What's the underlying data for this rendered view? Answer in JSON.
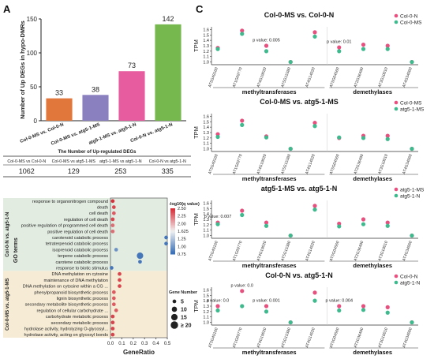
{
  "panel_labels": {
    "a": "A",
    "b": "B",
    "c": "C"
  },
  "chart_data": [
    {
      "id": "A",
      "type": "bar",
      "ylabel": "Number of Up DEGs in hypo-DMRs",
      "ylim": [
        0,
        150
      ],
      "yticks": [
        0,
        50,
        100,
        150
      ],
      "categories": [
        "Col-0-MS vs. Col-0-N",
        "Col-0-MS vs. atg5-1-MS",
        "atg5-1-MS vs. atg5-1-N",
        "Col-0-N vs. atg5-1-N"
      ],
      "values": [
        33,
        38,
        73,
        142
      ],
      "colors": [
        "#e2773b",
        "#8a80c0",
        "#e65c9f",
        "#76b84e"
      ],
      "table": {
        "title": "The Number of Up-regulated DEGs",
        "headers": [
          "Col-0-MS vs Col-0-N",
          "Col-0-MS vs atg5-1-MS",
          "atg5-1-MS vs atg5-1-N",
          "Col-0-N vs atg5-1-N"
        ],
        "values": [
          "1062",
          "129",
          "253",
          "335"
        ]
      }
    },
    {
      "id": "B",
      "type": "scatter",
      "xlabel": "GeneRatio",
      "xlim": [
        0,
        0.5
      ],
      "xticks": [
        "0.0",
        "0.1",
        "0.2",
        "0.3",
        "0.4",
        "0.5"
      ],
      "group_label": "GO terms",
      "groups": [
        {
          "name": "Col-0-N vs. atg5-1-N",
          "color": "#e2ece1",
          "terms": [
            {
              "term": "response to organonitrogen compound",
              "x": 0.02,
              "q": 2.6,
              "genes": 5
            },
            {
              "term": "death",
              "x": 0.03,
              "q": 2.5,
              "genes": 5
            },
            {
              "term": "cell death",
              "x": 0.03,
              "q": 2.4,
              "genes": 5
            },
            {
              "term": "regulation of cell death",
              "x": 0.02,
              "q": 2.5,
              "genes": 5
            },
            {
              "term": "positive regulation of programmed cell death",
              "x": 0.02,
              "q": 2.3,
              "genes": 5
            },
            {
              "term": "positive regulation of cell death",
              "x": 0.02,
              "q": 2.3,
              "genes": 5
            },
            {
              "term": "carotenoid catabolic process",
              "x": 0.49,
              "q": 0.8,
              "genes": 5
            },
            {
              "term": "tetraterpenoid catabolic process",
              "x": 0.49,
              "q": 0.8,
              "genes": 5
            },
            {
              "term": "isoprenoid catabolic process",
              "x": 0.05,
              "q": 1.0,
              "genes": 5
            },
            {
              "term": "terpene catabolic process",
              "x": 0.26,
              "q": 0.8,
              "genes": 15
            },
            {
              "term": "carotene catabolic process",
              "x": 0.26,
              "q": 0.8,
              "genes": 5
            },
            {
              "term": "response to biotic stimulus",
              "x": 0.01,
              "q": 0.8,
              "genes": 5
            }
          ]
        },
        {
          "name": "Col-0-MS vs. atg5-1-MS",
          "color": "#f6ecd6",
          "terms": [
            {
              "term": "DNA methylation on cytosine",
              "x": 0.08,
              "q": 2.5,
              "genes": 5
            },
            {
              "term": "maintenance of DNA methylation",
              "x": 0.08,
              "q": 2.5,
              "genes": 5
            },
            {
              "term": "DNA methylation on cytosine within a CG ...",
              "x": 0.08,
              "q": 2.5,
              "genes": 5
            },
            {
              "term": "phenylpropanoid biosynthetic process",
              "x": 0.03,
              "q": 2.4,
              "genes": 5
            },
            {
              "term": "lignin biosynthetic process",
              "x": 0.03,
              "q": 2.4,
              "genes": 5
            },
            {
              "term": "secondary metabolite biosynthetic process",
              "x": 0.03,
              "q": 2.4,
              "genes": 5
            },
            {
              "term": "regulation of cellular carbohydrate ...",
              "x": 0.05,
              "q": 2.4,
              "genes": 5
            },
            {
              "term": "carbohydrate metabolic process",
              "x": 0.02,
              "q": 2.5,
              "genes": 5
            },
            {
              "term": "secondary metabolic process",
              "x": 0.02,
              "q": 2.5,
              "genes": 5
            },
            {
              "term": "hydrolase activity, hydrolyzing O-glycosyl...",
              "x": 0.02,
              "q": 2.5,
              "genes": 5
            },
            {
              "term": "hydrolase activity, acting on glycosyl bonds",
              "x": 0.02,
              "q": 2.5,
              "genes": 5
            }
          ]
        }
      ],
      "color_legend": {
        "title": "-log10(q value)",
        "ticks": [
          "2.50",
          "2.25",
          "2.00",
          "1.625",
          "1.25",
          "1.00",
          "0.75"
        ],
        "min": 0.75,
        "max": 2.6
      },
      "size_legend": {
        "title": "Gene Number",
        "values": [
          "5",
          "10",
          "15",
          "20"
        ],
        "last_prefix": "≥"
      }
    },
    {
      "id": "C",
      "type": "scatter",
      "ylabel": "TPM",
      "ylim": [
        0.95,
        1.65
      ],
      "yticks": [
        "1.0",
        "1.1",
        "1.2",
        "1.3",
        "1.4",
        "1.5",
        "1.6"
      ],
      "genes": [
        "AT5G49160",
        "AT1G69770",
        "AT4G19020",
        "AT5G15380",
        "AT4G14020",
        "AT5G04560",
        "AT2G36490",
        "AT3G10010",
        "AT4G34060"
      ],
      "group_labels": [
        "methyltransferases",
        "demethylases"
      ],
      "subplots": [
        {
          "title": "Col-0-MS vs. Col-0-N",
          "legend": [
            "Col-0-N",
            "Col-0-MS"
          ],
          "colors": [
            "#e8507f",
            "#3fb98e"
          ],
          "series": [
            [
              1.26,
              1.58,
              1.3,
              1.0,
              1.55,
              1.27,
              1.32,
              1.3,
              1.0
            ],
            [
              1.24,
              1.52,
              1.2,
              1.0,
              1.47,
              1.2,
              1.24,
              1.24,
              1.0
            ]
          ],
          "pvalues": [
            {
              "text": "p value: 0.005",
              "gene": 2,
              "y": 1.38
            },
            {
              "text": "p value: 0.01",
              "gene": 5,
              "y": 1.35
            }
          ]
        },
        {
          "title": "Col-0-MS vs. atg5-1-MS",
          "legend": [
            "Col-0-MS",
            "atg5-1-MS"
          ],
          "colors": [
            "#e8507f",
            "#3fb98e"
          ],
          "series": [
            [
              1.27,
              1.52,
              1.23,
              1.0,
              1.48,
              1.2,
              1.24,
              1.24,
              1.0
            ],
            [
              1.22,
              1.44,
              1.21,
              1.0,
              1.42,
              1.21,
              1.2,
              1.18,
              1.0
            ]
          ],
          "pvalues": []
        },
        {
          "title": "atg5-1-MS vs. atg5-1-N",
          "legend": [
            "atg5-1-MS",
            "atg5-1-N"
          ],
          "colors": [
            "#e8507f",
            "#3fb98e"
          ],
          "series": [
            [
              1.24,
              1.46,
              1.24,
              1.0,
              1.55,
              1.22,
              1.3,
              1.24,
              1.0
            ],
            [
              1.21,
              1.38,
              1.18,
              1.0,
              1.48,
              1.17,
              1.21,
              1.18,
              1.0
            ]
          ],
          "pvalues": [
            {
              "text": "p value: 0.007",
              "gene": 0,
              "y": 1.33
            }
          ]
        },
        {
          "title": "Col-0-N vs. atg5-1-N",
          "legend": [
            "Col-0-N",
            "atg5-1-N"
          ],
          "colors": [
            "#e8507f",
            "#3fb98e"
          ],
          "series": [
            [
              1.3,
              1.58,
              1.3,
              1.0,
              1.55,
              1.3,
              1.3,
              1.28,
              1.0
            ],
            [
              1.22,
              1.3,
              1.2,
              1.0,
              1.4,
              1.22,
              1.23,
              1.18,
              1.0
            ]
          ],
          "pvalues": [
            {
              "text": "p value: 0.0",
              "gene": 1,
              "y": 1.66
            },
            {
              "text": "p value: 0.0",
              "gene": 0,
              "y": 1.38
            },
            {
              "text": "p value: 0.001",
              "gene": 2,
              "y": 1.38
            },
            {
              "text": "p value: 0.004",
              "gene": 5,
              "y": 1.38
            }
          ]
        }
      ]
    }
  ]
}
